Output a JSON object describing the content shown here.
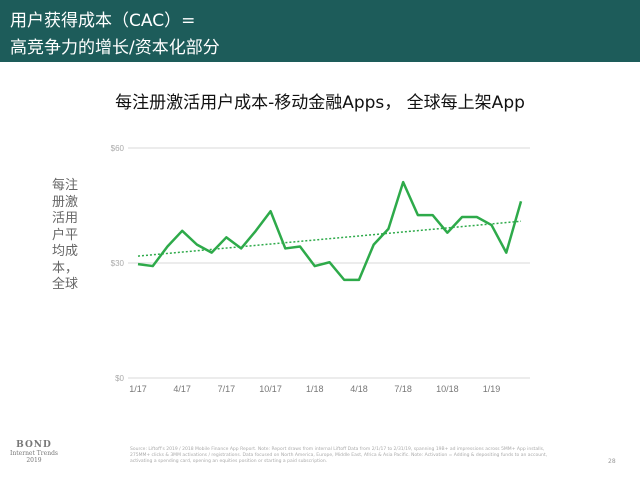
{
  "header": {
    "line1": "用户获得成本（CAC）=",
    "line2": "高竞争力的增长/资本化部分"
  },
  "footer": {
    "brand": "BOND",
    "brand_sub": "Internet Trends",
    "brand_year": "2019",
    "source": "Source: Liftoff's 2019 / 2018 Mobile Finance App Report. Note: Report draws from internal Liftoff Data from 2/1/17 to 2/31/19, spanning 19B+ ad impressions across 5MM+ App installs, 275MM+ clicks & 3MM activations / registrations. Data focused on North America, Europe, Middle East, Africa & Asia Pacific. Note: Activation = Adding & depositing funds to an account, activating a spending card, opening an equities position or starting a paid subscription.",
    "page_number": "28"
  },
  "colors": {
    "header_bg": "#1d5c5a",
    "line": "#2eaa4a",
    "trend": "#2eaa4a",
    "grid": "#d8d8d8"
  },
  "chart_data": {
    "type": "line",
    "title": "每注册激活用户成本-移动金融Apps， 全球每上架App",
    "ylabel": "每注册激活用户平均成本，全球",
    "xlabel": "",
    "ylim": [
      0,
      60
    ],
    "y_ticks": [
      "$0",
      "$30",
      "$60"
    ],
    "y_tick_values": [
      0,
      30,
      60
    ],
    "grid": true,
    "x_tick_labels": [
      "1/17",
      "4/17",
      "7/17",
      "10/17",
      "1/18",
      "4/18",
      "7/18",
      "10/18",
      "1/19"
    ],
    "x_tick_index": [
      0,
      3,
      6,
      9,
      12,
      15,
      18,
      21,
      24
    ],
    "series": [
      {
        "x": [
          "1/17",
          "2/17",
          "3/17",
          "4/17",
          "5/17",
          "6/17",
          "7/17",
          "8/17",
          "9/17",
          "10/17",
          "11/17",
          "12/17",
          "1/18",
          "2/18",
          "3/18",
          "4/18",
          "5/18",
          "6/18",
          "7/18",
          "8/18",
          "9/18",
          "10/18",
          "11/18",
          "12/18",
          "1/19",
          "2/19",
          "3/19"
        ],
        "values": [
          29.7,
          29.2,
          34.3,
          38.4,
          34.8,
          32.7,
          36.7,
          33.8,
          38.4,
          43.5,
          33.8,
          34.3,
          29.2,
          30.2,
          25.6,
          25.6,
          34.8,
          38.9,
          51.1,
          42.5,
          42.5,
          37.9,
          42.0,
          42.0,
          39.9,
          32.7,
          46.1
        ]
      }
    ],
    "trend": {
      "start": 31.8,
      "end": 40.9
    }
  }
}
